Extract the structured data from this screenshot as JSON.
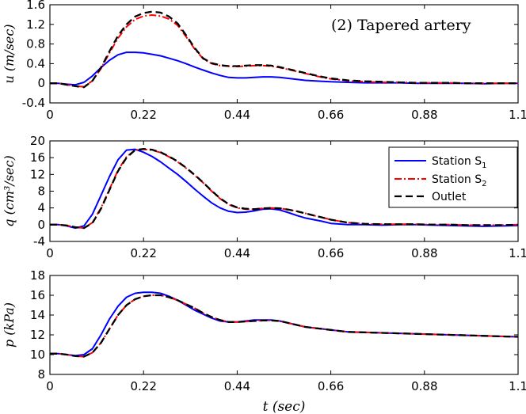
{
  "chart_data": [
    {
      "type": "line",
      "title": "(2) Tapered artery",
      "ylabel": "u (m/sec)",
      "xlabel": "",
      "xlim": [
        0,
        1.1
      ],
      "ylim": [
        -0.4,
        1.6
      ],
      "xticks": [
        "0",
        "0.22",
        "0.44",
        "0.66",
        "0.88",
        "1.1"
      ],
      "yticks": [
        "-0.4",
        "0",
        "0.4",
        "0.8",
        "1.2",
        "1.6"
      ],
      "series": [
        {
          "name": "Station S1",
          "color": "#0000ff",
          "style": "solid",
          "x": [
            0,
            0.02,
            0.04,
            0.06,
            0.08,
            0.1,
            0.12,
            0.14,
            0.16,
            0.18,
            0.2,
            0.22,
            0.24,
            0.26,
            0.28,
            0.3,
            0.32,
            0.34,
            0.36,
            0.38,
            0.4,
            0.42,
            0.44,
            0.46,
            0.48,
            0.5,
            0.52,
            0.54,
            0.56,
            0.58,
            0.6,
            0.62,
            0.64,
            0.66,
            0.7,
            0.74,
            0.78,
            0.82,
            0.86,
            0.9,
            0.94,
            0.98,
            1.02,
            1.06,
            1.1
          ],
          "y": [
            0,
            0,
            -0.02,
            -0.03,
            0.02,
            0.15,
            0.32,
            0.47,
            0.58,
            0.63,
            0.63,
            0.62,
            0.59,
            0.56,
            0.51,
            0.46,
            0.4,
            0.33,
            0.27,
            0.21,
            0.16,
            0.12,
            0.11,
            0.11,
            0.12,
            0.13,
            0.13,
            0.12,
            0.1,
            0.08,
            0.06,
            0.05,
            0.04,
            0.03,
            0.02,
            0.01,
            0.01,
            0.01,
            0,
            0,
            0,
            0,
            -0.01,
            0,
            0
          ]
        },
        {
          "name": "Station S2",
          "color": "#ff0000",
          "style": "dashdot",
          "x": [
            0,
            0.02,
            0.04,
            0.06,
            0.08,
            0.1,
            0.12,
            0.14,
            0.16,
            0.18,
            0.2,
            0.22,
            0.24,
            0.26,
            0.28,
            0.3,
            0.32,
            0.34,
            0.36,
            0.38,
            0.4,
            0.42,
            0.44,
            0.46,
            0.48,
            0.5,
            0.52,
            0.54,
            0.56,
            0.58,
            0.6,
            0.62,
            0.64,
            0.66,
            0.7,
            0.74,
            0.78,
            0.82,
            0.86,
            0.9,
            0.94,
            0.98,
            1.02,
            1.06,
            1.1
          ],
          "y": [
            0,
            0,
            -0.03,
            -0.06,
            -0.07,
            0.05,
            0.3,
            0.62,
            0.92,
            1.15,
            1.3,
            1.37,
            1.39,
            1.37,
            1.31,
            1.18,
            0.95,
            0.7,
            0.5,
            0.4,
            0.36,
            0.35,
            0.34,
            0.35,
            0.36,
            0.36,
            0.35,
            0.32,
            0.28,
            0.24,
            0.2,
            0.16,
            0.12,
            0.09,
            0.05,
            0.03,
            0.02,
            0.02,
            0.01,
            0.01,
            0.01,
            0,
            0,
            0,
            0
          ]
        },
        {
          "name": "Outlet",
          "color": "#000000",
          "style": "dashed",
          "x": [
            0,
            0.02,
            0.04,
            0.06,
            0.08,
            0.1,
            0.12,
            0.14,
            0.16,
            0.18,
            0.2,
            0.22,
            0.24,
            0.26,
            0.28,
            0.3,
            0.32,
            0.34,
            0.36,
            0.38,
            0.4,
            0.42,
            0.44,
            0.46,
            0.48,
            0.5,
            0.52,
            0.54,
            0.56,
            0.58,
            0.6,
            0.62,
            0.64,
            0.66,
            0.7,
            0.74,
            0.78,
            0.82,
            0.86,
            0.9,
            0.94,
            0.98,
            1.02,
            1.06,
            1.1
          ],
          "y": [
            0,
            0,
            -0.03,
            -0.06,
            -0.08,
            0.05,
            0.32,
            0.65,
            0.97,
            1.2,
            1.36,
            1.43,
            1.46,
            1.44,
            1.36,
            1.22,
            0.98,
            0.72,
            0.51,
            0.41,
            0.37,
            0.35,
            0.35,
            0.36,
            0.37,
            0.37,
            0.36,
            0.33,
            0.29,
            0.25,
            0.21,
            0.17,
            0.13,
            0.1,
            0.06,
            0.04,
            0.03,
            0.02,
            0.01,
            0.01,
            0.01,
            0,
            0,
            0,
            0
          ]
        }
      ]
    },
    {
      "type": "line",
      "title": "",
      "ylabel": "q (cm³/sec)",
      "xlabel": "",
      "xlim": [
        0,
        1.1
      ],
      "ylim": [
        -4,
        20
      ],
      "xticks": [
        "0",
        "0.22",
        "0.44",
        "0.66",
        "0.88",
        "1.1"
      ],
      "yticks": [
        "-4",
        "0",
        "4",
        "8",
        "12",
        "16",
        "20"
      ],
      "series": [
        {
          "name": "Station S1",
          "color": "#0000ff",
          "style": "solid",
          "x": [
            0,
            0.02,
            0.04,
            0.06,
            0.08,
            0.1,
            0.12,
            0.14,
            0.16,
            0.18,
            0.2,
            0.22,
            0.24,
            0.26,
            0.28,
            0.3,
            0.32,
            0.34,
            0.36,
            0.38,
            0.4,
            0.42,
            0.44,
            0.46,
            0.48,
            0.5,
            0.52,
            0.54,
            0.56,
            0.58,
            0.6,
            0.62,
            0.64,
            0.66,
            0.7,
            0.74,
            0.78,
            0.82,
            0.86,
            0.9,
            0.94,
            0.98,
            1.02,
            1.06,
            1.1
          ],
          "y": [
            0,
            0,
            -0.3,
            -0.8,
            -0.3,
            2.5,
            7.0,
            11.5,
            15.5,
            17.8,
            18.0,
            17.3,
            16.3,
            15.0,
            13.5,
            12.0,
            10.3,
            8.5,
            6.8,
            5.2,
            4.0,
            3.2,
            2.9,
            3.0,
            3.3,
            3.7,
            3.8,
            3.5,
            2.9,
            2.2,
            1.6,
            1.2,
            0.8,
            0.3,
            0,
            0,
            -0.1,
            0,
            0,
            -0.1,
            -0.2,
            -0.3,
            -0.4,
            -0.3,
            -0.2
          ]
        },
        {
          "name": "Station S2",
          "color": "#ff0000",
          "style": "dashdot",
          "x": [
            0,
            0.02,
            0.04,
            0.06,
            0.08,
            0.1,
            0.12,
            0.14,
            0.16,
            0.18,
            0.2,
            0.22,
            0.24,
            0.26,
            0.28,
            0.3,
            0.32,
            0.34,
            0.36,
            0.38,
            0.4,
            0.42,
            0.44,
            0.46,
            0.48,
            0.5,
            0.52,
            0.54,
            0.56,
            0.58,
            0.6,
            0.62,
            0.64,
            0.66,
            0.7,
            0.74,
            0.78,
            0.82,
            0.86,
            0.9,
            0.94,
            0.98,
            1.02,
            1.06,
            1.1
          ],
          "y": [
            0,
            0,
            -0.2,
            -0.6,
            -0.8,
            0.5,
            4.0,
            8.5,
            13.0,
            16.2,
            17.8,
            18.0,
            17.8,
            17.2,
            16.2,
            15.0,
            13.5,
            11.8,
            10.0,
            8.0,
            6.2,
            4.8,
            4.0,
            3.7,
            3.7,
            3.9,
            4.0,
            3.9,
            3.6,
            3.2,
            2.7,
            2.2,
            1.7,
            1.2,
            0.5,
            0.2,
            0.1,
            0.1,
            0.1,
            0,
            0,
            -0.1,
            -0.1,
            -0.1,
            0
          ]
        },
        {
          "name": "Outlet",
          "color": "#000000",
          "style": "dashed",
          "x": [
            0,
            0.02,
            0.04,
            0.06,
            0.08,
            0.1,
            0.12,
            0.14,
            0.16,
            0.18,
            0.2,
            0.22,
            0.24,
            0.26,
            0.28,
            0.3,
            0.32,
            0.34,
            0.36,
            0.38,
            0.4,
            0.42,
            0.44,
            0.46,
            0.48,
            0.5,
            0.52,
            0.54,
            0.56,
            0.58,
            0.6,
            0.62,
            0.64,
            0.66,
            0.7,
            0.74,
            0.78,
            0.82,
            0.86,
            0.9,
            0.94,
            0.98,
            1.02,
            1.06,
            1.1
          ],
          "y": [
            0,
            0,
            -0.2,
            -0.6,
            -0.8,
            0.4,
            3.8,
            8.3,
            12.8,
            16.0,
            17.8,
            18.1,
            17.9,
            17.3,
            16.3,
            15.1,
            13.6,
            11.9,
            10.1,
            8.1,
            6.3,
            4.9,
            4.1,
            3.8,
            3.7,
            3.9,
            4.0,
            3.9,
            3.6,
            3.2,
            2.7,
            2.2,
            1.7,
            1.2,
            0.5,
            0.2,
            0.1,
            0.1,
            0.1,
            0,
            0,
            -0.1,
            -0.1,
            -0.1,
            0
          ]
        }
      ]
    },
    {
      "type": "line",
      "title": "",
      "ylabel": "p (kPa)",
      "xlabel": "t (sec)",
      "xlim": [
        0,
        1.1
      ],
      "ylim": [
        8,
        18
      ],
      "xticks": [
        "0",
        "0.22",
        "0.44",
        "0.66",
        "0.88",
        "1.1"
      ],
      "yticks": [
        "8",
        "10",
        "12",
        "14",
        "16",
        "18"
      ],
      "series": [
        {
          "name": "Station S1",
          "color": "#0000ff",
          "style": "solid",
          "x": [
            0,
            0.02,
            0.04,
            0.06,
            0.08,
            0.1,
            0.12,
            0.14,
            0.16,
            0.18,
            0.2,
            0.22,
            0.24,
            0.26,
            0.28,
            0.3,
            0.32,
            0.34,
            0.36,
            0.38,
            0.4,
            0.42,
            0.44,
            0.46,
            0.48,
            0.5,
            0.52,
            0.54,
            0.56,
            0.58,
            0.6,
            0.62,
            0.64,
            0.66,
            0.7,
            0.74,
            0.78,
            0.82,
            0.86,
            0.9,
            0.94,
            0.98,
            1.02,
            1.06,
            1.1
          ],
          "y": [
            10.1,
            10.1,
            10.0,
            9.9,
            10.0,
            10.6,
            12.0,
            13.6,
            14.9,
            15.8,
            16.2,
            16.3,
            16.3,
            16.2,
            15.9,
            15.5,
            15.0,
            14.5,
            14.1,
            13.7,
            13.4,
            13.3,
            13.3,
            13.4,
            13.5,
            13.5,
            13.5,
            13.4,
            13.2,
            13.0,
            12.8,
            12.7,
            12.6,
            12.5,
            12.3,
            12.25,
            12.2,
            12.15,
            12.1,
            12.05,
            12.0,
            11.95,
            11.9,
            11.85,
            11.8
          ]
        },
        {
          "name": "Station S2",
          "color": "#ff0000",
          "style": "dashdot",
          "x": [
            0,
            0.02,
            0.04,
            0.06,
            0.08,
            0.1,
            0.12,
            0.14,
            0.16,
            0.18,
            0.2,
            0.22,
            0.24,
            0.26,
            0.28,
            0.3,
            0.32,
            0.34,
            0.36,
            0.38,
            0.4,
            0.42,
            0.44,
            0.46,
            0.48,
            0.5,
            0.52,
            0.54,
            0.56,
            0.58,
            0.6,
            0.62,
            0.64,
            0.66,
            0.7,
            0.74,
            0.78,
            0.82,
            0.86,
            0.9,
            0.94,
            0.98,
            1.02,
            1.06,
            1.1
          ],
          "y": [
            10.1,
            10.1,
            10.0,
            9.85,
            9.8,
            10.2,
            11.2,
            12.6,
            14.0,
            15.0,
            15.6,
            15.9,
            16.0,
            16.0,
            15.8,
            15.5,
            15.1,
            14.7,
            14.2,
            13.8,
            13.5,
            13.3,
            13.3,
            13.35,
            13.4,
            13.45,
            13.45,
            13.4,
            13.2,
            13.0,
            12.8,
            12.7,
            12.6,
            12.5,
            12.3,
            12.25,
            12.2,
            12.15,
            12.1,
            12.05,
            12.0,
            11.95,
            11.9,
            11.85,
            11.8
          ]
        },
        {
          "name": "Outlet",
          "color": "#000000",
          "style": "dashed",
          "x": [
            0,
            0.02,
            0.04,
            0.06,
            0.08,
            0.1,
            0.12,
            0.14,
            0.16,
            0.18,
            0.2,
            0.22,
            0.24,
            0.26,
            0.28,
            0.3,
            0.32,
            0.34,
            0.36,
            0.38,
            0.4,
            0.42,
            0.44,
            0.46,
            0.48,
            0.5,
            0.52,
            0.54,
            0.56,
            0.58,
            0.6,
            0.62,
            0.64,
            0.66,
            0.7,
            0.74,
            0.78,
            0.82,
            0.86,
            0.9,
            0.94,
            0.98,
            1.02,
            1.06,
            1.1
          ],
          "y": [
            10.1,
            10.1,
            10.0,
            9.85,
            9.8,
            10.2,
            11.2,
            12.6,
            14.0,
            15.0,
            15.6,
            15.9,
            16.0,
            16.0,
            15.8,
            15.5,
            15.1,
            14.7,
            14.2,
            13.8,
            13.5,
            13.3,
            13.3,
            13.35,
            13.4,
            13.45,
            13.45,
            13.4,
            13.2,
            13.0,
            12.8,
            12.7,
            12.6,
            12.5,
            12.3,
            12.25,
            12.2,
            12.15,
            12.1,
            12.05,
            12.0,
            11.95,
            11.9,
            11.85,
            11.8
          ]
        }
      ]
    }
  ],
  "legend": {
    "entries": [
      {
        "label": "Station S",
        "subscript": "1",
        "color": "#0000ff",
        "style": "solid"
      },
      {
        "label": "Station S",
        "subscript": "2",
        "color": "#ff0000",
        "style": "dashdot"
      },
      {
        "label": "Outlet",
        "subscript": "",
        "color": "#000000",
        "style": "dashed"
      }
    ]
  }
}
